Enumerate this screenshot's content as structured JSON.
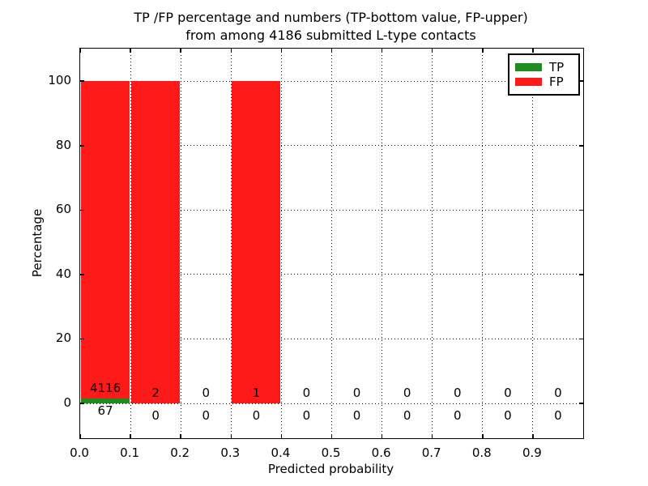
{
  "figure": {
    "title_line1": "TP /FP percentage and numbers (TP-bottom value, FP-upper)",
    "title_line2": "from among 4186 submitted L-type contacts"
  },
  "chart_data": {
    "type": "bar",
    "stacked": true,
    "title": "TP /FP percentage and numbers (TP-bottom value, FP-upper)\nfrom among 4186 submitted L-type contacts",
    "xlabel": "Predicted probability",
    "ylabel": "Percentage",
    "xlim": [
      0.0,
      1.0
    ],
    "ylim": [
      -10.8,
      110.1
    ],
    "grid": "dotted",
    "total_contacts": 4186,
    "bin_width": 0.1,
    "bin_starts": [
      0.0,
      0.1,
      0.2,
      0.3,
      0.4,
      0.5,
      0.6,
      0.7,
      0.8,
      0.9
    ],
    "x_ticks": [
      "0.0",
      "0.1",
      "0.2",
      "0.3",
      "0.4",
      "0.5",
      "0.6",
      "0.7",
      "0.8",
      "0.9"
    ],
    "y_ticks": [
      "0",
      "20",
      "40",
      "60",
      "80",
      "100"
    ],
    "y_tick_values": [
      0,
      20,
      40,
      60,
      80,
      100
    ],
    "series": [
      {
        "name": "TP",
        "color": "#1e8c1e",
        "counts": [
          67,
          0,
          0,
          0,
          0,
          0,
          0,
          0,
          0,
          0
        ],
        "pct": [
          1.6,
          0,
          0,
          0,
          0,
          0,
          0,
          0,
          0,
          0
        ],
        "annotation_position": "bottom"
      },
      {
        "name": "FP",
        "color": "#ff1a1a",
        "counts": [
          4116,
          2,
          0,
          1,
          0,
          0,
          0,
          0,
          0,
          0
        ],
        "pct": [
          98.4,
          100,
          0,
          100,
          0,
          0,
          0,
          0,
          0,
          0
        ],
        "annotation_position": "upper"
      }
    ],
    "legend": {
      "position": "upper right",
      "entries": [
        {
          "label": "TP",
          "color": "#1e8c1e"
        },
        {
          "label": "FP",
          "color": "#ff1a1a"
        }
      ]
    }
  }
}
